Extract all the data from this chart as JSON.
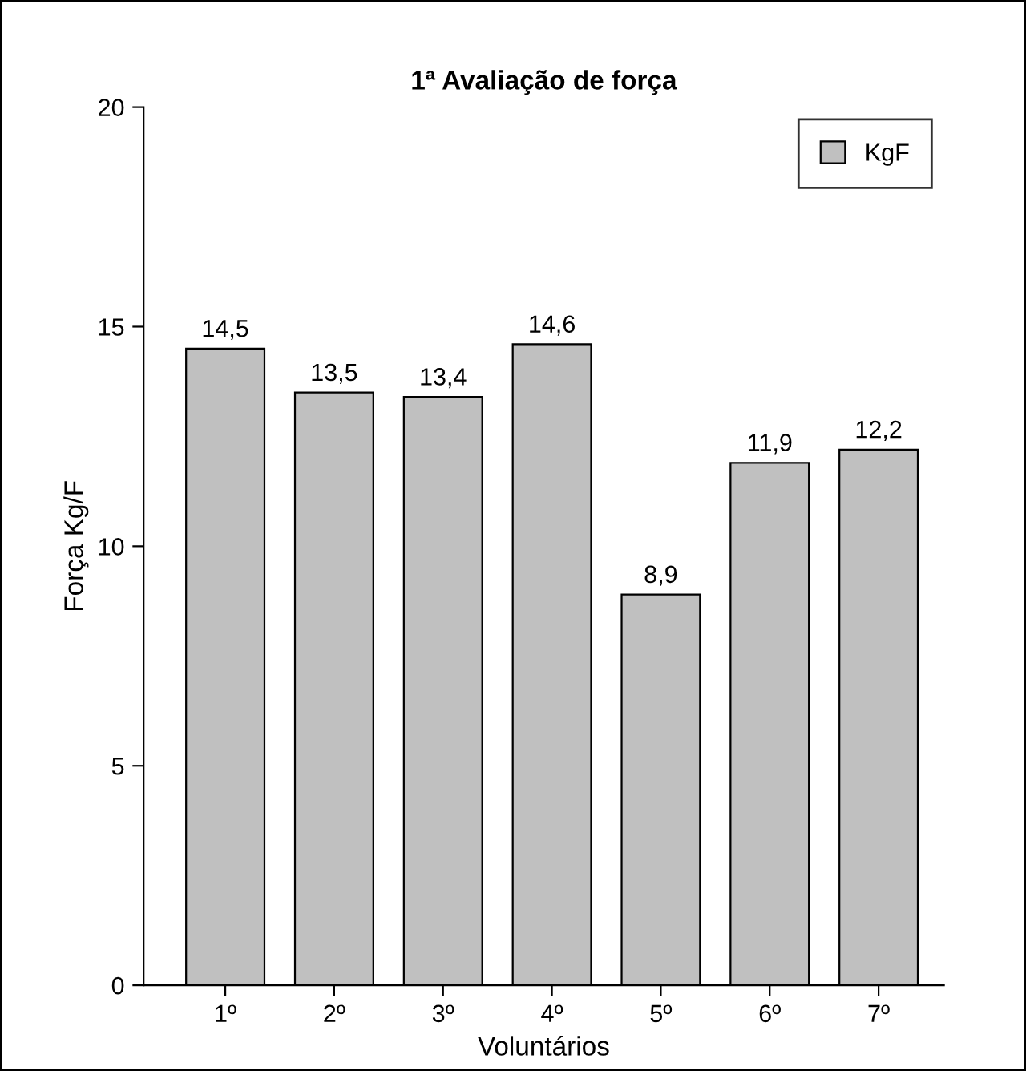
{
  "chart_data": {
    "type": "bar",
    "title": "1ª Avaliação de força",
    "xlabel": "Voluntários",
    "ylabel": "Força Kg/F",
    "categories": [
      "1º",
      "2º",
      "3º",
      "4º",
      "5º",
      "6º",
      "7º"
    ],
    "series": [
      {
        "name": "KgF",
        "color": "#c0c0c0",
        "values": [
          14.5,
          13.5,
          13.4,
          14.6,
          8.9,
          11.9,
          12.2
        ],
        "value_labels": [
          "14,5",
          "13,5",
          "13,4",
          "14,6",
          "8,9",
          "11,9",
          "12,2"
        ]
      }
    ],
    "ylim": [
      0,
      20
    ],
    "yticks": [
      0,
      5,
      10,
      15,
      20
    ],
    "grid": false,
    "legend": "top right"
  }
}
